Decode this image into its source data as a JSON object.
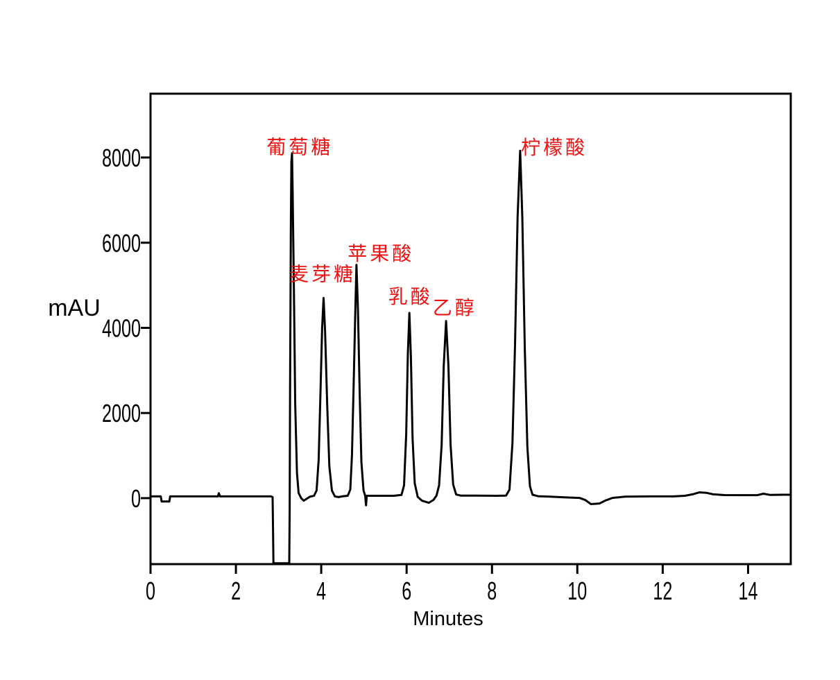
{
  "chart_data": {
    "type": "line",
    "title": "",
    "xlabel": "Minutes",
    "ylabel": "mAU",
    "xlim": [
      0,
      15
    ],
    "ylim": [
      -1550,
      9500
    ],
    "xticks": [
      0,
      2,
      4,
      6,
      8,
      10,
      12,
      14
    ],
    "yticks": [
      0,
      2000,
      4000,
      6000,
      8000
    ],
    "grid": false,
    "legend": "none",
    "line_color": "#000000",
    "frame_color": "#000000",
    "annotation_color": "#ee1111",
    "annotations": [
      {
        "text": "葡萄糖",
        "x": 3.5,
        "y": 8300
      },
      {
        "text": "麦芽糖",
        "x": 4.03,
        "y": 5320
      },
      {
        "text": "苹果酸",
        "x": 5.4,
        "y": 5800
      },
      {
        "text": "乳酸",
        "x": 6.09,
        "y": 4790
      },
      {
        "text": "乙醇",
        "x": 7.13,
        "y": 4530
      },
      {
        "text": "柠檬酸",
        "x": 9.46,
        "y": 8290
      }
    ],
    "peaks": [
      {
        "label": "葡萄糖",
        "retention_min": 3.31,
        "height_mAU": 8100
      },
      {
        "label": "麦芽糖",
        "retention_min": 4.05,
        "height_mAU": 4700
      },
      {
        "label": "苹果酸",
        "retention_min": 4.82,
        "height_mAU": 5480
      },
      {
        "label": "乳酸",
        "retention_min": 6.06,
        "height_mAU": 4350
      },
      {
        "label": "乙醇",
        "retention_min": 6.92,
        "height_mAU": 4160
      },
      {
        "label": "柠檬酸",
        "retention_min": 8.66,
        "height_mAU": 8160
      }
    ],
    "trace": [
      [
        0,
        40
      ],
      [
        0.24,
        40
      ],
      [
        0.26,
        -80
      ],
      [
        0.44,
        -80
      ],
      [
        0.46,
        40
      ],
      [
        1.58,
        40
      ],
      [
        1.6,
        115
      ],
      [
        1.63,
        40
      ],
      [
        2.4,
        40
      ],
      [
        2.82,
        40
      ],
      [
        2.86,
        25
      ],
      [
        2.87,
        -700
      ],
      [
        2.88,
        -1530
      ],
      [
        3.25,
        -1530
      ],
      [
        3.26,
        -300
      ],
      [
        3.27,
        2600
      ],
      [
        3.29,
        6600
      ],
      [
        3.3,
        7900
      ],
      [
        3.315,
        8100
      ],
      [
        3.33,
        7200
      ],
      [
        3.36,
        4800
      ],
      [
        3.39,
        2200
      ],
      [
        3.43,
        600
      ],
      [
        3.47,
        120
      ],
      [
        3.53,
        0
      ],
      [
        3.59,
        -60
      ],
      [
        3.66,
        -15
      ],
      [
        3.74,
        35
      ],
      [
        3.83,
        55
      ],
      [
        3.89,
        180
      ],
      [
        3.94,
        900
      ],
      [
        3.98,
        2400
      ],
      [
        4.02,
        4000
      ],
      [
        4.055,
        4700
      ],
      [
        4.09,
        3900
      ],
      [
        4.14,
        2200
      ],
      [
        4.19,
        750
      ],
      [
        4.25,
        180
      ],
      [
        4.32,
        40
      ],
      [
        4.4,
        25
      ],
      [
        4.52,
        45
      ],
      [
        4.62,
        55
      ],
      [
        4.68,
        200
      ],
      [
        4.72,
        1000
      ],
      [
        4.76,
        2700
      ],
      [
        4.8,
        4500
      ],
      [
        4.825,
        5480
      ],
      [
        4.86,
        4400
      ],
      [
        4.9,
        2500
      ],
      [
        4.94,
        850
      ],
      [
        4.99,
        180
      ],
      [
        5.03,
        55
      ],
      [
        5.05,
        -170
      ],
      [
        5.065,
        55
      ],
      [
        5.3,
        55
      ],
      [
        5.7,
        55
      ],
      [
        5.88,
        75
      ],
      [
        5.94,
        300
      ],
      [
        5.99,
        1500
      ],
      [
        6.03,
        3400
      ],
      [
        6.065,
        4350
      ],
      [
        6.1,
        3300
      ],
      [
        6.14,
        1400
      ],
      [
        6.19,
        350
      ],
      [
        6.26,
        30
      ],
      [
        6.36,
        -60
      ],
      [
        6.52,
        -110
      ],
      [
        6.63,
        -40
      ],
      [
        6.7,
        60
      ],
      [
        6.76,
        300
      ],
      [
        6.82,
        1250
      ],
      [
        6.87,
        3100
      ],
      [
        6.925,
        4160
      ],
      [
        6.98,
        3100
      ],
      [
        7.03,
        1250
      ],
      [
        7.09,
        320
      ],
      [
        7.16,
        85
      ],
      [
        7.27,
        60
      ],
      [
        7.6,
        60
      ],
      [
        8.1,
        55
      ],
      [
        8.33,
        60
      ],
      [
        8.41,
        200
      ],
      [
        8.48,
        1300
      ],
      [
        8.54,
        3600
      ],
      [
        8.6,
        6600
      ],
      [
        8.66,
        8160
      ],
      [
        8.71,
        6600
      ],
      [
        8.77,
        3500
      ],
      [
        8.83,
        1200
      ],
      [
        8.89,
        280
      ],
      [
        8.95,
        80
      ],
      [
        9.08,
        45
      ],
      [
        9.35,
        35
      ],
      [
        9.7,
        20
      ],
      [
        10.05,
        5
      ],
      [
        10.18,
        -40
      ],
      [
        10.32,
        -140
      ],
      [
        10.52,
        -125
      ],
      [
        10.66,
        -55
      ],
      [
        10.82,
        5
      ],
      [
        11.12,
        35
      ],
      [
        11.7,
        40
      ],
      [
        12.25,
        40
      ],
      [
        12.52,
        55
      ],
      [
        12.72,
        95
      ],
      [
        12.86,
        135
      ],
      [
        13.02,
        125
      ],
      [
        13.18,
        90
      ],
      [
        13.45,
        72
      ],
      [
        13.85,
        70
      ],
      [
        14.22,
        70
      ],
      [
        14.36,
        105
      ],
      [
        14.52,
        75
      ],
      [
        14.8,
        80
      ],
      [
        15,
        80
      ]
    ]
  }
}
